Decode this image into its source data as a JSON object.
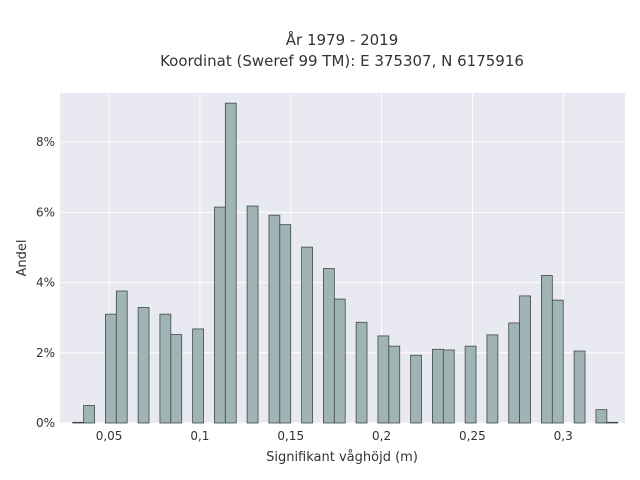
{
  "chart_data": {
    "type": "bar",
    "title": "År 1979 - 2019",
    "subtitle": "Koordinat (Sweref 99 TM): E 375307, N 6175916",
    "xlabel": "Signifikant våghöjd (m)",
    "ylabel": "Andel",
    "xlim": [
      0.023,
      0.334
    ],
    "ylim": [
      0,
      9.4
    ],
    "grid": true,
    "x_ticks": [
      0.05,
      0.1,
      0.15,
      0.2,
      0.25,
      0.3
    ],
    "x_tick_labels": [
      "0,05",
      "0,1",
      "0,15",
      "0,2",
      "0,25",
      "0,3"
    ],
    "y_ticks": [
      0,
      2,
      4,
      6,
      8
    ],
    "y_tick_labels": [
      "0%",
      "2%",
      "4%",
      "6%",
      "8%"
    ],
    "bin_width": 0.006,
    "x": [
      0.033,
      0.039,
      0.045,
      0.051,
      0.057,
      0.063,
      0.069,
      0.075,
      0.081,
      0.087,
      0.093,
      0.099,
      0.105,
      0.111,
      0.117,
      0.123,
      0.129,
      0.135,
      0.141,
      0.147,
      0.153,
      0.159,
      0.165,
      0.171,
      0.177,
      0.183,
      0.189,
      0.195,
      0.201,
      0.207,
      0.213,
      0.219,
      0.225,
      0.231,
      0.237,
      0.243,
      0.249,
      0.255,
      0.261,
      0.267,
      0.273,
      0.279,
      0.285,
      0.291,
      0.297,
      0.303,
      0.309,
      0.315,
      0.321,
      0.327
    ],
    "values": [
      0.02,
      0.5,
      0,
      3.1,
      3.76,
      0,
      3.29,
      0,
      3.1,
      2.52,
      0,
      2.68,
      0,
      6.15,
      9.11,
      0,
      6.18,
      0,
      5.92,
      5.65,
      0,
      5.01,
      0,
      4.4,
      3.53,
      0,
      2.87,
      0,
      2.48,
      2.19,
      0,
      1.93,
      0,
      2.1,
      2.08,
      0,
      2.19,
      0,
      2.51,
      0,
      2.85,
      3.62,
      0,
      4.2,
      3.5,
      0,
      2.05,
      0,
      0.38,
      0.02
    ]
  }
}
